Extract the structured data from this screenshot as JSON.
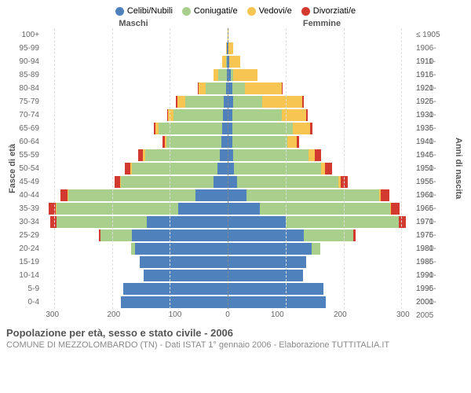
{
  "legend": [
    {
      "label": "Celibi/Nubili",
      "color": "#4f81bd"
    },
    {
      "label": "Coniugati/e",
      "color": "#a8cf8c"
    },
    {
      "label": "Vedovi/e",
      "color": "#f7c552"
    },
    {
      "label": "Divorziati/e",
      "color": "#d33a2f"
    }
  ],
  "header_male": "Maschi",
  "header_female": "Femmine",
  "ylabel_left": "Fasce di età",
  "ylabel_right": "Anni di nascita",
  "age_bands": [
    "100+",
    "95-99",
    "90-94",
    "85-89",
    "80-84",
    "75-79",
    "70-74",
    "65-69",
    "60-64",
    "55-59",
    "50-54",
    "45-49",
    "40-44",
    "35-39",
    "30-34",
    "25-29",
    "20-24",
    "15-19",
    "10-14",
    "5-9",
    "0-4"
  ],
  "birth_years": [
    "≤ 1905",
    "1906-1910",
    "1911-1915",
    "1916-1920",
    "1921-1925",
    "1926-1930",
    "1931-1935",
    "1936-1940",
    "1941-1945",
    "1946-1950",
    "1951-1955",
    "1956-1960",
    "1961-1965",
    "1966-1970",
    "1971-1975",
    "1976-1980",
    "1981-1985",
    "1986-1990",
    "1991-1995",
    "1996-2000",
    "2001-2005"
  ],
  "x_max": 320,
  "x_ticks": [
    300,
    200,
    100,
    0
  ],
  "colors": {
    "celibi": "#4f81bd",
    "coniugati": "#a8cf8c",
    "vedovi": "#f7c552",
    "divorziati": "#d33a2f",
    "grid": "#dddddd",
    "center": "#888888",
    "bg": "#ffffff",
    "text": "#666666"
  },
  "male": [
    {
      "cel": 0,
      "con": 0,
      "ved": 0,
      "div": 0
    },
    {
      "cel": 1,
      "con": 0,
      "ved": 2,
      "div": 0
    },
    {
      "cel": 1,
      "con": 2,
      "ved": 6,
      "div": 0
    },
    {
      "cel": 2,
      "con": 14,
      "ved": 8,
      "div": 0
    },
    {
      "cel": 3,
      "con": 35,
      "ved": 12,
      "div": 2
    },
    {
      "cel": 7,
      "con": 66,
      "ved": 14,
      "div": 2
    },
    {
      "cel": 8,
      "con": 86,
      "ved": 9,
      "div": 2
    },
    {
      "cel": 10,
      "con": 110,
      "ved": 5,
      "div": 3
    },
    {
      "cel": 11,
      "con": 95,
      "ved": 3,
      "div": 4
    },
    {
      "cel": 13,
      "con": 130,
      "ved": 3,
      "div": 9
    },
    {
      "cel": 18,
      "con": 148,
      "ved": 2,
      "div": 10
    },
    {
      "cel": 24,
      "con": 160,
      "ved": 2,
      "div": 9
    },
    {
      "cel": 55,
      "con": 220,
      "ved": 1,
      "div": 13
    },
    {
      "cel": 86,
      "con": 210,
      "ved": 1,
      "div": 12
    },
    {
      "cel": 140,
      "con": 156,
      "ved": 0,
      "div": 10
    },
    {
      "cel": 165,
      "con": 55,
      "ved": 0,
      "div": 3
    },
    {
      "cel": 160,
      "con": 7,
      "ved": 0,
      "div": 0
    },
    {
      "cel": 152,
      "con": 0,
      "ved": 0,
      "div": 0
    },
    {
      "cel": 145,
      "con": 0,
      "ved": 0,
      "div": 0
    },
    {
      "cel": 180,
      "con": 0,
      "ved": 0,
      "div": 0
    },
    {
      "cel": 185,
      "con": 0,
      "ved": 0,
      "div": 0
    }
  ],
  "female": [
    {
      "cel": 0,
      "con": 0,
      "ved": 1,
      "div": 0
    },
    {
      "cel": 2,
      "con": 0,
      "ved": 7,
      "div": 0
    },
    {
      "cel": 3,
      "con": 0,
      "ved": 19,
      "div": 0
    },
    {
      "cel": 6,
      "con": 4,
      "ved": 41,
      "div": 0
    },
    {
      "cel": 8,
      "con": 22,
      "ved": 63,
      "div": 1
    },
    {
      "cel": 9,
      "con": 50,
      "ved": 70,
      "div": 2
    },
    {
      "cel": 8,
      "con": 85,
      "ved": 43,
      "div": 2
    },
    {
      "cel": 8,
      "con": 105,
      "ved": 30,
      "div": 4
    },
    {
      "cel": 8,
      "con": 95,
      "ved": 16,
      "div": 5
    },
    {
      "cel": 9,
      "con": 130,
      "ved": 12,
      "div": 10
    },
    {
      "cel": 11,
      "con": 150,
      "ved": 7,
      "div": 12
    },
    {
      "cel": 16,
      "con": 175,
      "ved": 4,
      "div": 12
    },
    {
      "cel": 32,
      "con": 230,
      "ved": 3,
      "div": 14
    },
    {
      "cel": 55,
      "con": 225,
      "ved": 2,
      "div": 15
    },
    {
      "cel": 100,
      "con": 195,
      "ved": 1,
      "div": 12
    },
    {
      "cel": 132,
      "con": 85,
      "ved": 0,
      "div": 4
    },
    {
      "cel": 145,
      "con": 15,
      "ved": 0,
      "div": 0
    },
    {
      "cel": 135,
      "con": 0,
      "ved": 0,
      "div": 0
    },
    {
      "cel": 130,
      "con": 0,
      "ved": 0,
      "div": 0
    },
    {
      "cel": 165,
      "con": 0,
      "ved": 0,
      "div": 0
    },
    {
      "cel": 170,
      "con": 0,
      "ved": 0,
      "div": 0
    }
  ],
  "title": "Popolazione per età, sesso e stato civile - 2006",
  "subtitle": "COMUNE DI MEZZOLOMBARDO (TN) - Dati ISTAT 1° gennaio 2006 - Elaborazione TUTTITALIA.IT"
}
